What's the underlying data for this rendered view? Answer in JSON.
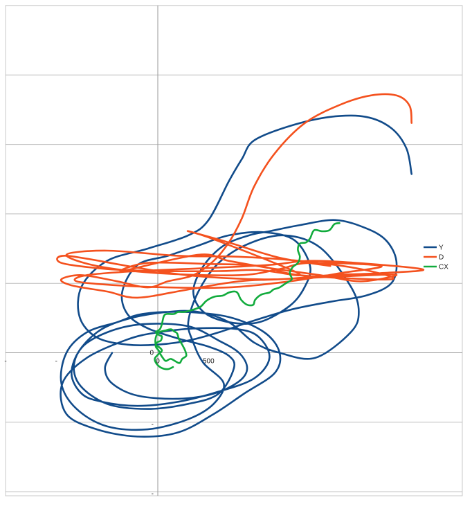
{
  "chart_data": {
    "type": "line",
    "title": "",
    "xlabel": "",
    "ylabel": "",
    "grid": true,
    "legend_placement": "right",
    "xlim": [
      -1500,
      3000
    ],
    "ylim": [
      -1400,
      3400
    ],
    "tick_labels": {
      "x": [
        "-",
        "-",
        "0",
        "500"
      ],
      "y": [
        "0",
        "-",
        "-"
      ]
    },
    "series": [
      {
        "name": "Y",
        "color": "#114b8a",
        "points": [
          [
            2500,
            1750
          ],
          [
            2450,
            2000
          ],
          [
            2300,
            2200
          ],
          [
            2050,
            2310
          ],
          [
            1700,
            2310
          ],
          [
            1300,
            2220
          ],
          [
            950,
            2080
          ],
          [
            830,
            1900
          ],
          [
            700,
            1680
          ],
          [
            500,
            1300
          ],
          [
            300,
            1150
          ],
          [
            -100,
            1020
          ],
          [
            -500,
            900
          ],
          [
            -750,
            650
          ],
          [
            -770,
            350
          ],
          [
            -600,
            150
          ],
          [
            -300,
            80
          ],
          [
            0,
            80
          ],
          [
            300,
            120
          ],
          [
            600,
            200
          ],
          [
            900,
            300
          ],
          [
            1300,
            420
          ],
          [
            1700,
            500
          ],
          [
            2050,
            560
          ],
          [
            2300,
            680
          ],
          [
            2350,
            900
          ],
          [
            2250,
            1100
          ],
          [
            2050,
            1220
          ],
          [
            1750,
            1300
          ],
          [
            1400,
            1250
          ],
          [
            1100,
            1190
          ],
          [
            900,
            1150
          ],
          [
            650,
            1050
          ],
          [
            450,
            850
          ],
          [
            350,
            600
          ],
          [
            450,
            400
          ],
          [
            700,
            300
          ],
          [
            1000,
            300
          ],
          [
            1300,
            460
          ],
          [
            1450,
            650
          ],
          [
            1500,
            850
          ],
          [
            1350,
            1100
          ],
          [
            1050,
            1180
          ],
          [
            700,
            1150
          ],
          [
            400,
            1050
          ],
          [
            100,
            950
          ],
          [
            -200,
            860
          ],
          [
            -350,
            600
          ],
          [
            -300,
            380
          ],
          [
            -100,
            240
          ],
          [
            200,
            140
          ],
          [
            500,
            60
          ],
          [
            700,
            -30
          ],
          [
            750,
            -150
          ],
          [
            600,
            -400
          ],
          [
            300,
            -500
          ],
          [
            -100,
            -550
          ],
          [
            -500,
            -500
          ],
          [
            -780,
            -300
          ],
          [
            -810,
            -50
          ],
          [
            -600,
            200
          ],
          [
            -300,
            330
          ],
          [
            100,
            400
          ],
          [
            400,
            400
          ],
          [
            700,
            300
          ],
          [
            950,
            100
          ],
          [
            1200,
            0
          ],
          [
            1550,
            -50
          ],
          [
            1900,
            200
          ],
          [
            1980,
            400
          ],
          [
            1900,
            650
          ],
          [
            1600,
            1030
          ],
          [
            1250,
            1150
          ],
          [
            900,
            1070
          ],
          [
            600,
            880
          ],
          [
            400,
            600
          ],
          [
            300,
            300
          ],
          [
            350,
            100
          ],
          [
            450,
            -100
          ],
          [
            650,
            -300
          ],
          [
            550,
            -500
          ],
          [
            300,
            -650
          ],
          [
            -100,
            -750
          ],
          [
            -500,
            -720
          ],
          [
            -800,
            -550
          ],
          [
            -950,
            -300
          ],
          [
            -900,
            0
          ],
          [
            -700,
            200
          ],
          [
            -400,
            300
          ],
          [
            -150,
            380
          ],
          [
            250,
            400
          ],
          [
            700,
            350
          ],
          [
            1050,
            200
          ],
          [
            1200,
            0
          ],
          [
            1150,
            -200
          ],
          [
            850,
            -400
          ],
          [
            550,
            -600
          ],
          [
            200,
            -780
          ],
          [
            -200,
            -820
          ],
          [
            -600,
            -750
          ],
          [
            -900,
            -600
          ],
          [
            -940,
            -300
          ],
          [
            -700,
            -50
          ],
          [
            -300,
            130
          ],
          [
            0,
            200
          ],
          [
            400,
            240
          ],
          [
            800,
            230
          ],
          [
            1000,
            150
          ],
          [
            1100,
            -50
          ],
          [
            950,
            -250
          ],
          [
            600,
            -380
          ],
          [
            200,
            -480
          ],
          [
            -200,
            -520
          ],
          [
            -550,
            -480
          ],
          [
            -750,
            -400
          ],
          [
            -850,
            -200
          ],
          [
            -750,
            50
          ],
          [
            -500,
            200
          ],
          [
            -150,
            280
          ],
          [
            300,
            260
          ],
          [
            600,
            120
          ],
          [
            800,
            0
          ],
          [
            880,
            -150
          ],
          [
            800,
            -280
          ],
          [
            550,
            -400
          ],
          [
            200,
            -450
          ],
          [
            -200,
            -420
          ],
          [
            -450,
            -300
          ],
          [
            -520,
            -150
          ],
          [
            -450,
            0
          ]
        ]
      },
      {
        "name": "D",
        "color": "#f4511e",
        "points": [
          [
            2500,
            2250
          ],
          [
            2480,
            2420
          ],
          [
            2350,
            2520
          ],
          [
            2100,
            2520
          ],
          [
            1800,
            2430
          ],
          [
            1450,
            2250
          ],
          [
            1150,
            1950
          ],
          [
            950,
            1630
          ],
          [
            830,
            1320
          ],
          [
            700,
            1080
          ],
          [
            550,
            900
          ],
          [
            350,
            760
          ],
          [
            100,
            700
          ],
          [
            -100,
            640
          ],
          [
            -400,
            700
          ],
          [
            -750,
            760
          ],
          [
            -950,
            720
          ],
          [
            -850,
            660
          ],
          [
            -500,
            600
          ],
          [
            -200,
            540
          ],
          [
            300,
            620
          ],
          [
            800,
            700
          ],
          [
            1200,
            720
          ],
          [
            2100,
            760
          ],
          [
            2350,
            760
          ],
          [
            2000,
            700
          ],
          [
            1600,
            760
          ],
          [
            1100,
            830
          ],
          [
            700,
            900
          ],
          [
            400,
            960
          ],
          [
            -350,
            800
          ],
          [
            -100,
            880
          ],
          [
            500,
            870
          ],
          [
            1000,
            850
          ],
          [
            1400,
            760
          ],
          [
            2300,
            720
          ],
          [
            2000,
            820
          ],
          [
            1400,
            900
          ],
          [
            800,
            940
          ],
          [
            200,
            950
          ],
          [
            -500,
            1000
          ],
          [
            -900,
            960
          ],
          [
            -600,
            850
          ],
          [
            0,
            780
          ],
          [
            800,
            760
          ],
          [
            1200,
            820
          ],
          [
            1500,
            880
          ],
          [
            2200,
            850
          ],
          [
            1800,
            780
          ],
          [
            1300,
            700
          ],
          [
            700,
            640
          ],
          [
            100,
            640
          ],
          [
            -400,
            660
          ],
          [
            -800,
            700
          ],
          [
            -700,
            760
          ],
          [
            -200,
            800
          ],
          [
            500,
            830
          ],
          [
            1100,
            860
          ],
          [
            1600,
            900
          ],
          [
            2600,
            820
          ],
          [
            2200,
            780
          ],
          [
            1700,
            760
          ],
          [
            1200,
            720
          ],
          [
            700,
            730
          ],
          [
            200,
            770
          ],
          [
            -300,
            850
          ],
          [
            -900,
            950
          ],
          [
            -950,
            880
          ],
          [
            -500,
            820
          ],
          [
            0,
            800
          ],
          [
            600,
            800
          ],
          [
            1000,
            810
          ],
          [
            1400,
            760
          ],
          [
            1100,
            900
          ],
          [
            500,
            1130
          ],
          [
            300,
            1190
          ],
          [
            700,
            1080
          ],
          [
            1200,
            930
          ],
          [
            1700,
            850
          ]
        ]
      },
      {
        "name": "CX",
        "color": "#11ab3c",
        "points": [
          [
            1790,
            1270
          ],
          [
            1740,
            1260
          ],
          [
            1690,
            1200
          ],
          [
            1620,
            1190
          ],
          [
            1540,
            1200
          ],
          [
            1500,
            1120
          ],
          [
            1460,
            1080
          ],
          [
            1400,
            1070
          ],
          [
            1380,
            1010
          ],
          [
            1400,
            940
          ],
          [
            1380,
            880
          ],
          [
            1330,
            840
          ],
          [
            1300,
            780
          ],
          [
            1320,
            720
          ],
          [
            1260,
            680
          ],
          [
            1200,
            640
          ],
          [
            1140,
            620
          ],
          [
            1100,
            590
          ],
          [
            1020,
            570
          ],
          [
            960,
            520
          ],
          [
            940,
            470
          ],
          [
            880,
            470
          ],
          [
            820,
            520
          ],
          [
            790,
            580
          ],
          [
            760,
            600
          ],
          [
            700,
            590
          ],
          [
            640,
            560
          ],
          [
            560,
            550
          ],
          [
            480,
            510
          ],
          [
            420,
            450
          ],
          [
            340,
            420
          ],
          [
            260,
            400
          ],
          [
            200,
            400
          ],
          [
            160,
            380
          ],
          [
            90,
            380
          ],
          [
            60,
            360
          ],
          [
            40,
            280
          ],
          [
            20,
            230
          ],
          [
            -20,
            200
          ],
          [
            20,
            170
          ],
          [
            40,
            160
          ],
          [
            30,
            120
          ],
          [
            -10,
            100
          ],
          [
            -20,
            60
          ],
          [
            10,
            20
          ],
          [
            30,
            -20
          ],
          [
            50,
            -50
          ],
          [
            80,
            -80
          ],
          [
            130,
            -60
          ],
          [
            210,
            -100
          ],
          [
            240,
            -60
          ],
          [
            280,
            -30
          ],
          [
            270,
            20
          ],
          [
            240,
            80
          ],
          [
            210,
            130
          ],
          [
            190,
            190
          ],
          [
            160,
            210
          ],
          [
            130,
            230
          ],
          [
            80,
            220
          ],
          [
            10,
            200
          ],
          [
            -20,
            150
          ],
          [
            -20,
            80
          ],
          [
            20,
            50
          ],
          [
            40,
            20
          ],
          [
            0,
            -20
          ],
          [
            -30,
            -60
          ],
          [
            -10,
            -110
          ],
          [
            40,
            -150
          ],
          [
            100,
            -160
          ],
          [
            150,
            -140
          ]
        ]
      }
    ]
  }
}
